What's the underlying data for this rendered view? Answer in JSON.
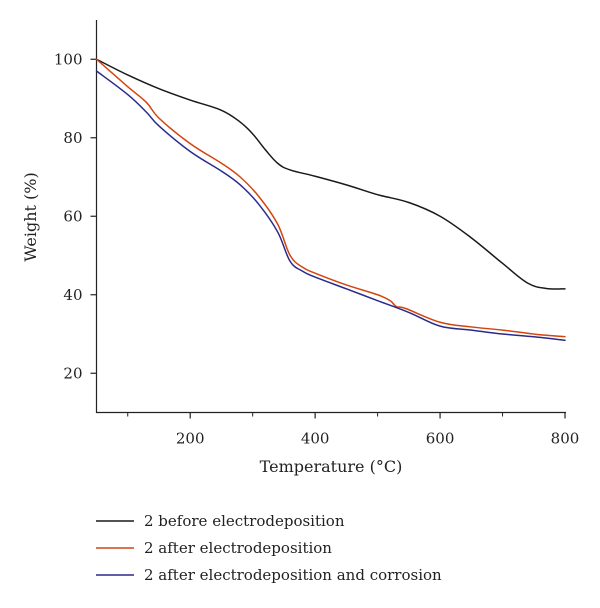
{
  "chart_data": {
    "type": "line",
    "xlabel": "Temperature (°C)",
    "ylabel": "Weight (%)",
    "xlim": [
      50,
      800
    ],
    "ylim": [
      10,
      110
    ],
    "x_ticks": [
      {
        "value": 200,
        "label": "200"
      },
      {
        "value": 400,
        "label": "400"
      },
      {
        "value": 600,
        "label": "600"
      },
      {
        "value": 800,
        "label": "800"
      }
    ],
    "x_minor_ticks": [
      100,
      300,
      500,
      700
    ],
    "y_ticks": [
      {
        "value": 20,
        "label": "20"
      },
      {
        "value": 40,
        "label": "40"
      },
      {
        "value": 60,
        "label": "60"
      },
      {
        "value": 80,
        "label": "80"
      },
      {
        "value": 100,
        "label": "100"
      }
    ],
    "grid": false,
    "legend_position": "bottom",
    "series": [
      {
        "name": "2 before electrodeposition",
        "color": "#1a1a1a",
        "points": [
          [
            50,
            100
          ],
          [
            100,
            96
          ],
          [
            150,
            92.5
          ],
          [
            200,
            89.6
          ],
          [
            250,
            87
          ],
          [
            280,
            84
          ],
          [
            300,
            81
          ],
          [
            320,
            77
          ],
          [
            340,
            73.5
          ],
          [
            360,
            71.8
          ],
          [
            400,
            70.2
          ],
          [
            450,
            68
          ],
          [
            500,
            65.5
          ],
          [
            550,
            63.5
          ],
          [
            600,
            60
          ],
          [
            650,
            54.5
          ],
          [
            700,
            48
          ],
          [
            740,
            43
          ],
          [
            770,
            41.6
          ],
          [
            800,
            41.5
          ]
        ]
      },
      {
        "name": "2 after electrodeposition",
        "color": "#d2450f",
        "points": [
          [
            50,
            100
          ],
          [
            100,
            93
          ],
          [
            130,
            89
          ],
          [
            150,
            85
          ],
          [
            200,
            78.5
          ],
          [
            250,
            73.5
          ],
          [
            280,
            70
          ],
          [
            310,
            65
          ],
          [
            340,
            58
          ],
          [
            360,
            50
          ],
          [
            380,
            47
          ],
          [
            400,
            45.5
          ],
          [
            450,
            42.5
          ],
          [
            500,
            40
          ],
          [
            520,
            38.5
          ],
          [
            530,
            37
          ],
          [
            545,
            36.5
          ],
          [
            600,
            33
          ],
          [
            650,
            31.8
          ],
          [
            700,
            31
          ],
          [
            740,
            30.2
          ],
          [
            760,
            29.8
          ],
          [
            800,
            29.3
          ]
        ]
      },
      {
        "name": "2 after electrodeposition and corrosion",
        "color": "#2a2a8c",
        "points": [
          [
            50,
            97
          ],
          [
            100,
            91
          ],
          [
            130,
            86.5
          ],
          [
            150,
            83
          ],
          [
            200,
            76.5
          ],
          [
            250,
            71.5
          ],
          [
            280,
            68
          ],
          [
            310,
            63
          ],
          [
            340,
            56
          ],
          [
            360,
            48.5
          ],
          [
            380,
            46
          ],
          [
            400,
            44.5
          ],
          [
            450,
            41.5
          ],
          [
            500,
            38.5
          ],
          [
            550,
            35.5
          ],
          [
            600,
            32
          ],
          [
            650,
            31
          ],
          [
            700,
            30
          ],
          [
            750,
            29.3
          ],
          [
            800,
            28.4
          ]
        ]
      }
    ]
  }
}
